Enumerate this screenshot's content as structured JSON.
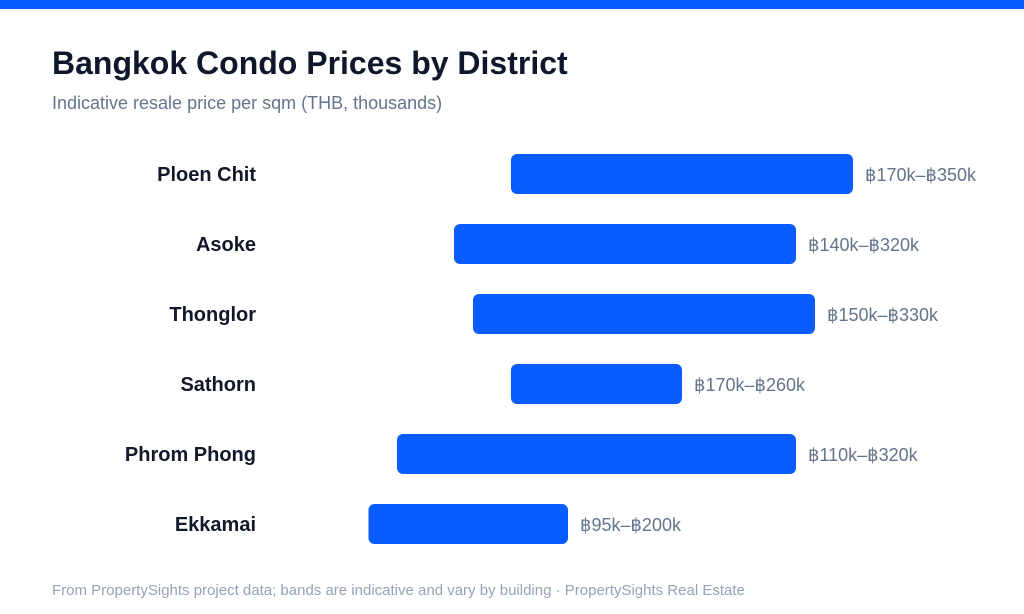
{
  "header": {
    "title": "Bangkok Condo Prices by District",
    "subtitle": "Indicative resale price per sqm (THB, thousands)"
  },
  "footer": {
    "note": "From PropertySights project data; bands are indicative and vary by building · PropertySights Real Estate"
  },
  "colors": {
    "accent": "#0b5cff",
    "bar": "#0b5cff",
    "category_text": "#111827",
    "value_label": "#64748b"
  },
  "chart_data": {
    "type": "bar",
    "orientation": "horizontal",
    "style": "range",
    "title": "Bangkok Condo Prices by District",
    "subtitle": "Indicative resale price per sqm (THB, thousands)",
    "categories": [
      "Ploen Chit",
      "Asoke",
      "Thonglor",
      "Sathorn",
      "Phrom Phong",
      "Ekkamai"
    ],
    "series": [
      {
        "low": [
          170,
          140,
          150,
          170,
          110,
          95
        ],
        "high": [
          350,
          320,
          330,
          260,
          320,
          200
        ],
        "labels": [
          "฿170k–฿350k",
          "฿140k–฿320k",
          "฿150k–฿330k",
          "฿170k–฿260k",
          "฿110k–฿320k",
          "฿95k–฿200k"
        ]
      }
    ],
    "xlim": [
      0,
      350
    ],
    "grid": false,
    "legend": "none"
  }
}
